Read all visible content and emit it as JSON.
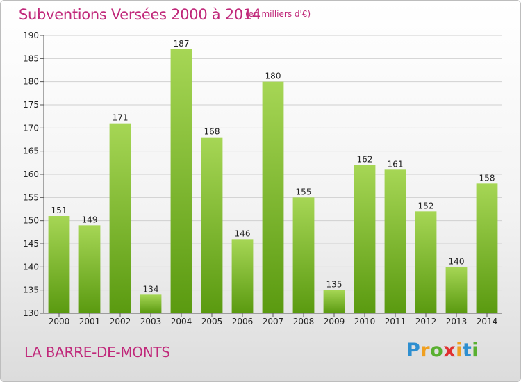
{
  "header": {
    "title": "Subventions Versées 2000 à 2014",
    "subtitle": "(en milliers d'€)"
  },
  "footer": {
    "commune": "LA BARRE-DE-MONTS",
    "logo": "Proxiti"
  },
  "colors": {
    "bar_light": "#a6d655",
    "bar_dark": "#5a9a10",
    "title": "#c0287a"
  },
  "chart_data": {
    "type": "bar",
    "title": "Subventions Versées 2000 à 2014",
    "subtitle": "(en milliers d'€)",
    "xlabel": "",
    "ylabel": "",
    "categories": [
      "2000",
      "2001",
      "2002",
      "2003",
      "2004",
      "2005",
      "2006",
      "2007",
      "2008",
      "2009",
      "2010",
      "2011",
      "2012",
      "2013",
      "2014"
    ],
    "values": [
      151,
      149,
      171,
      134,
      187,
      168,
      146,
      180,
      155,
      135,
      162,
      161,
      152,
      140,
      158
    ],
    "ylim": [
      130,
      190
    ],
    "yticks": [
      130,
      135,
      140,
      145,
      150,
      155,
      160,
      165,
      170,
      175,
      180,
      185,
      190
    ],
    "grid": true,
    "data_labels": true,
    "legend": "none"
  }
}
